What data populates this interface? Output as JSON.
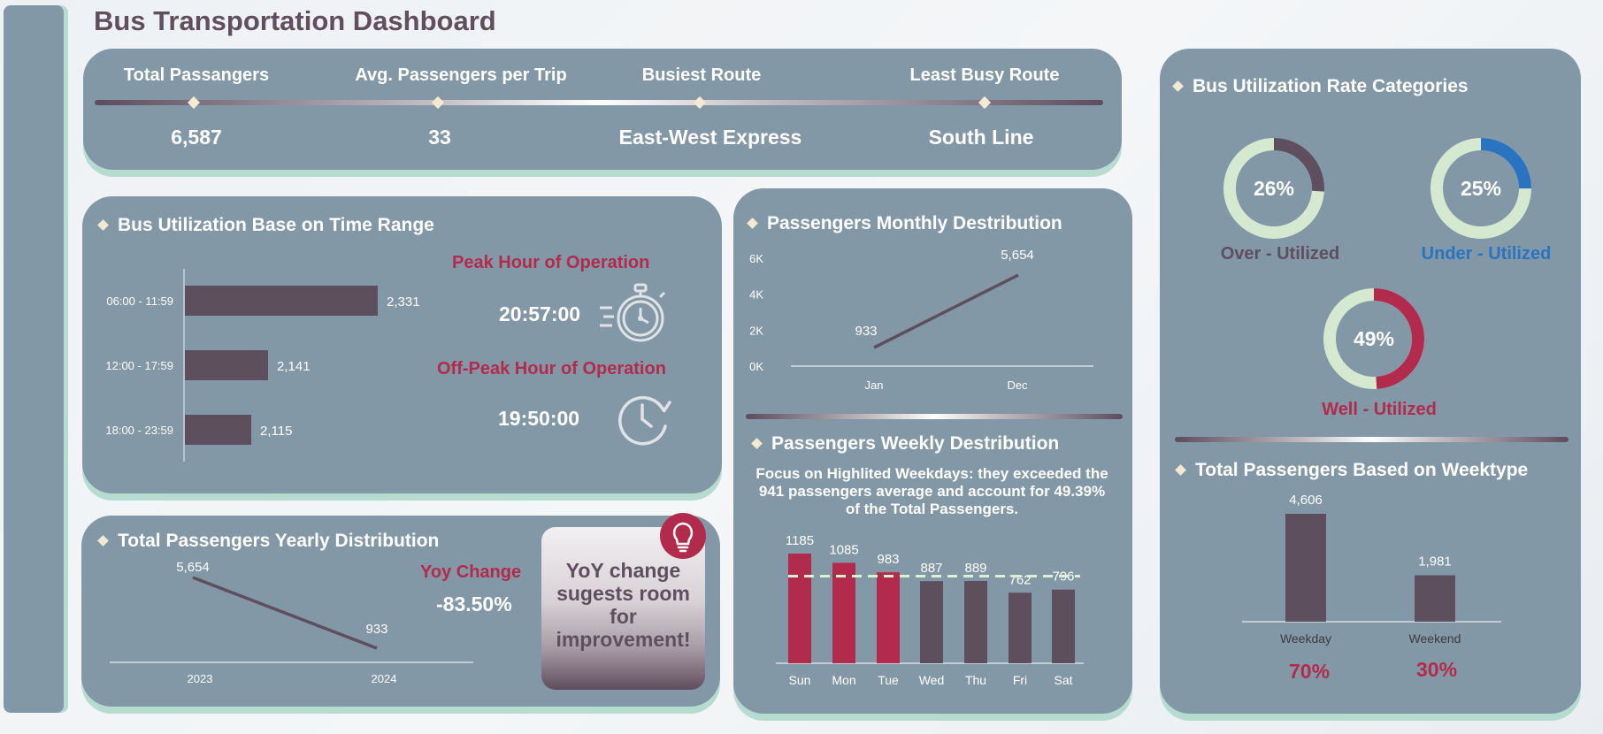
{
  "page_title": "Bus Transportation Dashboard",
  "kpis": [
    {
      "label": "Total Passangers",
      "value": "6,587"
    },
    {
      "label": "Avg. Passengers per Trip",
      "value": "33"
    },
    {
      "label": "Busiest Route",
      "value": "East-West Express"
    },
    {
      "label": "Least Busy Route",
      "value": "South Line"
    }
  ],
  "time_range": {
    "title": "Bus Utilization Base on Time Range",
    "peak_label": "Peak Hour of Operation",
    "peak_value": "20:57:00",
    "offpeak_label": "Off-Peak Hour of Operation",
    "offpeak_value": "19:50:00",
    "icons": [
      "stopwatch-icon",
      "clock-icon"
    ]
  },
  "yearly": {
    "title": "Total Passengers Yearly Distribution",
    "yoy_label": "Yoy Change",
    "yoy_value": "-83.50%",
    "tip_text": "YoY change sugests room for improvement!",
    "icon": "lightbulb-icon"
  },
  "monthly": {
    "title": "Passengers Monthly Destribution"
  },
  "weekly": {
    "title": "Passengers Weekly Destribution",
    "note": "Focus on Highlited Weekdays: they exceeded the 941 passengers average and account for 49.39% of the Total Passengers."
  },
  "utilization": {
    "title": "Bus Utilization Rate Categories",
    "categories": [
      {
        "label": "Over - Utilized",
        "value": 26,
        "display": "26%",
        "color": "#5e4f5f"
      },
      {
        "label": "Under - Utilized",
        "value": 25,
        "display": "25%",
        "color": "#2a73c0"
      },
      {
        "label": "Well - Utilized",
        "value": 49,
        "display": "49%",
        "color": "#b22b4c"
      }
    ],
    "ring_bg": "#d5e9d0"
  },
  "weektype": {
    "title": "Total Passengers Based on Weektype",
    "percents": [
      "70%",
      "30%"
    ]
  },
  "colors": {
    "panel": "#8398a6",
    "bar": "#5e4f5f",
    "highlight": "#b22b4c",
    "accent_green": "#b6dccf",
    "avg_line": "#d9f2cf"
  },
  "chart_data": [
    {
      "id": "time_range",
      "type": "bar",
      "orientation": "horizontal",
      "categories": [
        "06:00 - 11:59",
        "12:00 - 17:59",
        "18:00 - 23:59"
      ],
      "values": [
        2331,
        2141,
        2115
      ],
      "labels": [
        "2,331",
        "2,141",
        "2,115"
      ]
    },
    {
      "id": "monthly",
      "type": "line",
      "x": [
        "Jan",
        "Dec"
      ],
      "values": [
        933,
        5654
      ],
      "labels": [
        "933",
        "5,654"
      ],
      "yticks": [
        "0K",
        "2K",
        "4K",
        "6K"
      ],
      "ylim": [
        0,
        6000
      ]
    },
    {
      "id": "weekly",
      "type": "bar",
      "categories": [
        "Sun",
        "Mon",
        "Tue",
        "Wed",
        "Thu",
        "Fri",
        "Sat"
      ],
      "values": [
        1185,
        1085,
        983,
        887,
        889,
        762,
        796
      ],
      "highlighted": [
        true,
        true,
        true,
        false,
        false,
        false,
        false
      ],
      "average": 941
    },
    {
      "id": "yearly",
      "type": "line",
      "x": [
        "2023",
        "2024"
      ],
      "values": [
        5654,
        933
      ],
      "labels": [
        "5,654",
        "933"
      ]
    },
    {
      "id": "weektype",
      "type": "bar",
      "categories": [
        "Weekday",
        "Weekend"
      ],
      "values": [
        4606,
        1981
      ],
      "labels": [
        "4,606",
        "1,981"
      ]
    },
    {
      "id": "utilization",
      "type": "pie",
      "categories": [
        "Over - Utilized",
        "Under - Utilized",
        "Well - Utilized"
      ],
      "values": [
        26,
        25,
        49
      ]
    }
  ]
}
